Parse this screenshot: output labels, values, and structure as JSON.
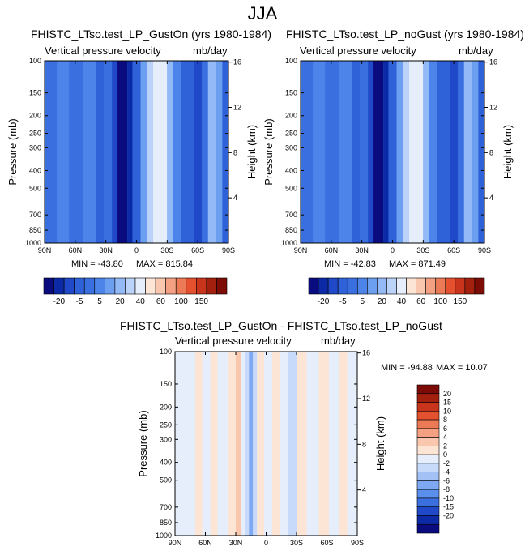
{
  "main_title": "JJA",
  "palette": {
    "main": [
      "#0b0b80",
      "#0d2aa6",
      "#1f49c9",
      "#2f62d8",
      "#3a6fe0",
      "#4c84ea",
      "#6d9ff0",
      "#93b9f6",
      "#bbd3f9",
      "#e6eefc",
      "#fde5d6",
      "#f8c7ae",
      "#f3a182",
      "#ed7a56",
      "#e5512f",
      "#c8351c",
      "#a3200f",
      "#7c0c05"
    ],
    "diff": [
      "#0b0b80",
      "#0d2aa6",
      "#1f49c9",
      "#3a6fe0",
      "#5b8fec",
      "#7ea8f1",
      "#a3c1f5",
      "#c7dafa",
      "#e6eefc",
      "#fde5d6",
      "#f8c7ae",
      "#f3a182",
      "#ed7a56",
      "#e5512f",
      "#c8351c",
      "#a3200f",
      "#7c0c05"
    ]
  },
  "chart_data": [
    {
      "type": "heatmap",
      "title": "FHISTC_LTso.test_LP_GustOn (yrs 1980-1984)",
      "subtitle_left": "Vertical pressure velocity",
      "subtitle_right": "mb/day",
      "xlabel": "",
      "ylabel": "Pressure (mb)",
      "ylabel_right": "Height (km)",
      "x_ticks": [
        "90N",
        "60N",
        "30N",
        "0",
        "30S",
        "60S",
        "90S"
      ],
      "x_tick_lat": [
        90,
        60,
        30,
        0,
        -30,
        -60,
        -90
      ],
      "y_ticks": [
        100,
        150,
        200,
        250,
        300,
        400,
        500,
        700,
        850,
        1000
      ],
      "y_ticks_right": [
        4,
        8,
        12,
        16
      ],
      "ylim": [
        1000,
        100
      ],
      "min_label": "MIN = -43.80",
      "max_label": "MAX = 815.84",
      "colorbar": {
        "orientation": "horizontal",
        "tick_labels": [
          "-20",
          "-5",
          "5",
          "20",
          "40",
          "60",
          "100",
          "150"
        ]
      },
      "bands": [
        {
          "lat_from": 90,
          "lat_to": 78,
          "level": 4
        },
        {
          "lat_from": 78,
          "lat_to": 66,
          "level": 5
        },
        {
          "lat_from": 66,
          "lat_to": 52,
          "level": 4
        },
        {
          "lat_from": 52,
          "lat_to": 40,
          "level": 5
        },
        {
          "lat_from": 40,
          "lat_to": 32,
          "level": 3
        },
        {
          "lat_from": 32,
          "lat_to": 24,
          "level": 4
        },
        {
          "lat_from": 24,
          "lat_to": 19,
          "level": 2
        },
        {
          "lat_from": 19,
          "lat_to": 9,
          "level": 0
        },
        {
          "lat_from": 9,
          "lat_to": 4,
          "level": 1
        },
        {
          "lat_from": 4,
          "lat_to": -4,
          "level": 3
        },
        {
          "lat_from": -4,
          "lat_to": -10,
          "level": 6
        },
        {
          "lat_from": -10,
          "lat_to": -16,
          "level": 8
        },
        {
          "lat_from": -16,
          "lat_to": -30,
          "level": 9
        },
        {
          "lat_from": -30,
          "lat_to": -36,
          "level": 7
        },
        {
          "lat_from": -36,
          "lat_to": -44,
          "level": 5
        },
        {
          "lat_from": -44,
          "lat_to": -56,
          "level": 3
        },
        {
          "lat_from": -56,
          "lat_to": -64,
          "level": 2
        },
        {
          "lat_from": -64,
          "lat_to": -70,
          "level": 4
        },
        {
          "lat_from": -70,
          "lat_to": -78,
          "level": 7
        },
        {
          "lat_from": -78,
          "lat_to": -84,
          "level": 6
        },
        {
          "lat_from": -84,
          "lat_to": -90,
          "level": 3
        }
      ]
    },
    {
      "type": "heatmap",
      "title": "FHISTC_LTso.test_LP_noGust (yrs 1980-1984)",
      "subtitle_left": "Vertical pressure velocity",
      "subtitle_right": "mb/day",
      "xlabel": "",
      "ylabel": "Pressure (mb)",
      "ylabel_right": "Height (km)",
      "x_ticks": [
        "90N",
        "60N",
        "30N",
        "0",
        "30S",
        "60S",
        "90S"
      ],
      "x_tick_lat": [
        90,
        60,
        30,
        0,
        -30,
        -60,
        -90
      ],
      "y_ticks": [
        100,
        150,
        200,
        250,
        300,
        400,
        500,
        700,
        850,
        1000
      ],
      "y_ticks_right": [
        4,
        8,
        12,
        16
      ],
      "ylim": [
        1000,
        100
      ],
      "min_label": "MIN = -42.83",
      "max_label": "MAX = 871.49",
      "colorbar": {
        "orientation": "horizontal",
        "tick_labels": [
          "-20",
          "-5",
          "5",
          "20",
          "40",
          "60",
          "100",
          "150"
        ]
      },
      "bands": [
        {
          "lat_from": 90,
          "lat_to": 78,
          "level": 4
        },
        {
          "lat_from": 78,
          "lat_to": 66,
          "level": 5
        },
        {
          "lat_from": 66,
          "lat_to": 52,
          "level": 4
        },
        {
          "lat_from": 52,
          "lat_to": 40,
          "level": 5
        },
        {
          "lat_from": 40,
          "lat_to": 32,
          "level": 3
        },
        {
          "lat_from": 32,
          "lat_to": 24,
          "level": 4
        },
        {
          "lat_from": 24,
          "lat_to": 19,
          "level": 2
        },
        {
          "lat_from": 19,
          "lat_to": 9,
          "level": 0
        },
        {
          "lat_from": 9,
          "lat_to": 4,
          "level": 1
        },
        {
          "lat_from": 4,
          "lat_to": -4,
          "level": 3
        },
        {
          "lat_from": -4,
          "lat_to": -10,
          "level": 6
        },
        {
          "lat_from": -10,
          "lat_to": -16,
          "level": 8
        },
        {
          "lat_from": -16,
          "lat_to": -30,
          "level": 9
        },
        {
          "lat_from": -30,
          "lat_to": -36,
          "level": 7
        },
        {
          "lat_from": -36,
          "lat_to": -44,
          "level": 5
        },
        {
          "lat_from": -44,
          "lat_to": -56,
          "level": 3
        },
        {
          "lat_from": -56,
          "lat_to": -64,
          "level": 2
        },
        {
          "lat_from": -64,
          "lat_to": -70,
          "level": 4
        },
        {
          "lat_from": -70,
          "lat_to": -78,
          "level": 7
        },
        {
          "lat_from": -78,
          "lat_to": -84,
          "level": 6
        },
        {
          "lat_from": -84,
          "lat_to": -90,
          "level": 3
        }
      ]
    },
    {
      "type": "heatmap",
      "title": "FHISTC_LTso.test_LP_GustOn - FHISTC_LTso.test_LP_noGust",
      "subtitle_left": "Vertical pressure velocity",
      "subtitle_right": "mb/day",
      "xlabel": "",
      "ylabel": "Pressure (mb)",
      "ylabel_right": "Height (km)",
      "x_ticks": [
        "90N",
        "60N",
        "30N",
        "0",
        "30S",
        "60S",
        "90S"
      ],
      "x_tick_lat": [
        90,
        60,
        30,
        0,
        -30,
        -60,
        -90
      ],
      "y_ticks": [
        100,
        150,
        200,
        250,
        300,
        400,
        500,
        700,
        850,
        1000
      ],
      "y_ticks_right": [
        4,
        8,
        12,
        16
      ],
      "ylim": [
        1000,
        100
      ],
      "min_label": "MIN = -94.88",
      "max_label": "MAX =  10.07",
      "colorbar": {
        "orientation": "vertical",
        "tick_labels": [
          "20",
          "15",
          "10",
          "8",
          "6",
          "4",
          "2",
          "0",
          "-2",
          "-4",
          "-6",
          "-8",
          "-10",
          "-15",
          "-20"
        ]
      },
      "bands": [
        {
          "lat_from": 90,
          "lat_to": 70,
          "level": 8
        },
        {
          "lat_from": 70,
          "lat_to": 63,
          "level": 9
        },
        {
          "lat_from": 63,
          "lat_to": 55,
          "level": 8
        },
        {
          "lat_from": 55,
          "lat_to": 48,
          "level": 9
        },
        {
          "lat_from": 48,
          "lat_to": 38,
          "level": 8
        },
        {
          "lat_from": 38,
          "lat_to": 30,
          "level": 9
        },
        {
          "lat_from": 30,
          "lat_to": 25,
          "level": 10
        },
        {
          "lat_from": 25,
          "lat_to": 21,
          "level": 8
        },
        {
          "lat_from": 21,
          "lat_to": 17,
          "level": 7
        },
        {
          "lat_from": 17,
          "lat_to": 13,
          "level": 5
        },
        {
          "lat_from": 13,
          "lat_to": 9,
          "level": 7
        },
        {
          "lat_from": 9,
          "lat_to": 2,
          "level": 9
        },
        {
          "lat_from": 2,
          "lat_to": -6,
          "level": 8
        },
        {
          "lat_from": -6,
          "lat_to": -14,
          "level": 9
        },
        {
          "lat_from": -14,
          "lat_to": -22,
          "level": 8
        },
        {
          "lat_from": -22,
          "lat_to": -30,
          "level": 7
        },
        {
          "lat_from": -30,
          "lat_to": -40,
          "level": 9
        },
        {
          "lat_from": -40,
          "lat_to": -52,
          "level": 8
        },
        {
          "lat_from": -52,
          "lat_to": -62,
          "level": 9
        },
        {
          "lat_from": -62,
          "lat_to": -72,
          "level": 8
        },
        {
          "lat_from": -72,
          "lat_to": -80,
          "level": 9
        },
        {
          "lat_from": -80,
          "lat_to": -90,
          "level": 8
        }
      ]
    }
  ]
}
